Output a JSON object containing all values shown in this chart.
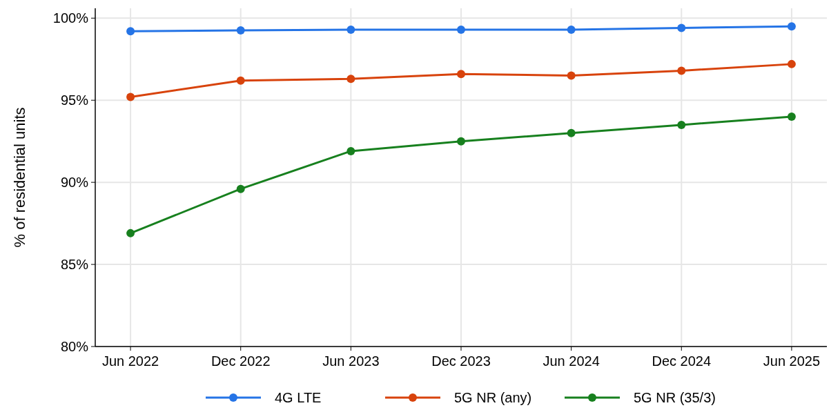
{
  "chart_data": {
    "type": "line",
    "ylabel": "% of residential units",
    "categories": [
      "Jun 2022",
      "Dec 2022",
      "Jun 2023",
      "Dec 2023",
      "Jun 2024",
      "Dec 2024",
      "Jun 2025"
    ],
    "series": [
      {
        "name": "4G LTE",
        "color": "#2574e6",
        "values": [
          99.2,
          99.25,
          99.3,
          99.3,
          99.3,
          99.4,
          99.5
        ]
      },
      {
        "name": "5G NR (any)",
        "color": "#d8430c",
        "values": [
          95.2,
          96.2,
          96.3,
          96.6,
          96.5,
          96.8,
          97.2
        ]
      },
      {
        "name": "5G NR (35/3)",
        "color": "#17801e",
        "values": [
          86.9,
          89.6,
          91.9,
          92.5,
          93.0,
          93.5,
          94.0
        ]
      }
    ],
    "ylim": [
      80,
      100.6
    ],
    "yticks": [
      {
        "value": 80,
        "label": "80%"
      },
      {
        "value": 85,
        "label": "85%"
      },
      {
        "value": 90,
        "label": "90%"
      },
      {
        "value": 95,
        "label": "95%"
      },
      {
        "value": 100,
        "label": "100%"
      }
    ],
    "grid": true,
    "legend": "bottom",
    "marker": "circle",
    "line_style": "solid"
  }
}
